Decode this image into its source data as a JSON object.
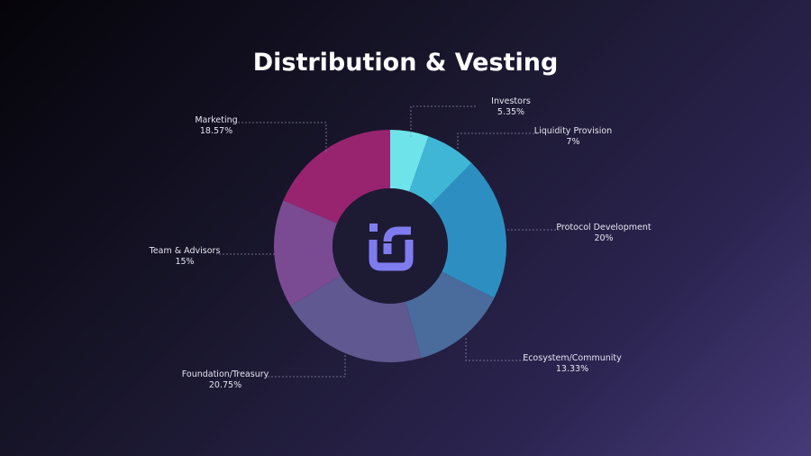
{
  "chart_data": {
    "type": "donut",
    "title": "Distribution & Vesting",
    "categories": [
      "Investors",
      "Liquidity Provision",
      "Protocol Development",
      "Ecosystem/Community",
      "Foundation/Treasury",
      "Team & Advisors",
      "Marketing"
    ],
    "values": [
      5.35,
      7,
      20,
      13.33,
      20.75,
      15,
      18.57
    ],
    "value_labels": [
      "5.35%",
      "7%",
      "20%",
      "13.33%",
      "20.75%",
      "15%",
      "18.57%"
    ],
    "colors": [
      "#6fe3ea",
      "#3fb6d6",
      "#2d8fc1",
      "#4a6c9c",
      "#5f5891",
      "#7a4a92",
      "#982470"
    ]
  }
}
